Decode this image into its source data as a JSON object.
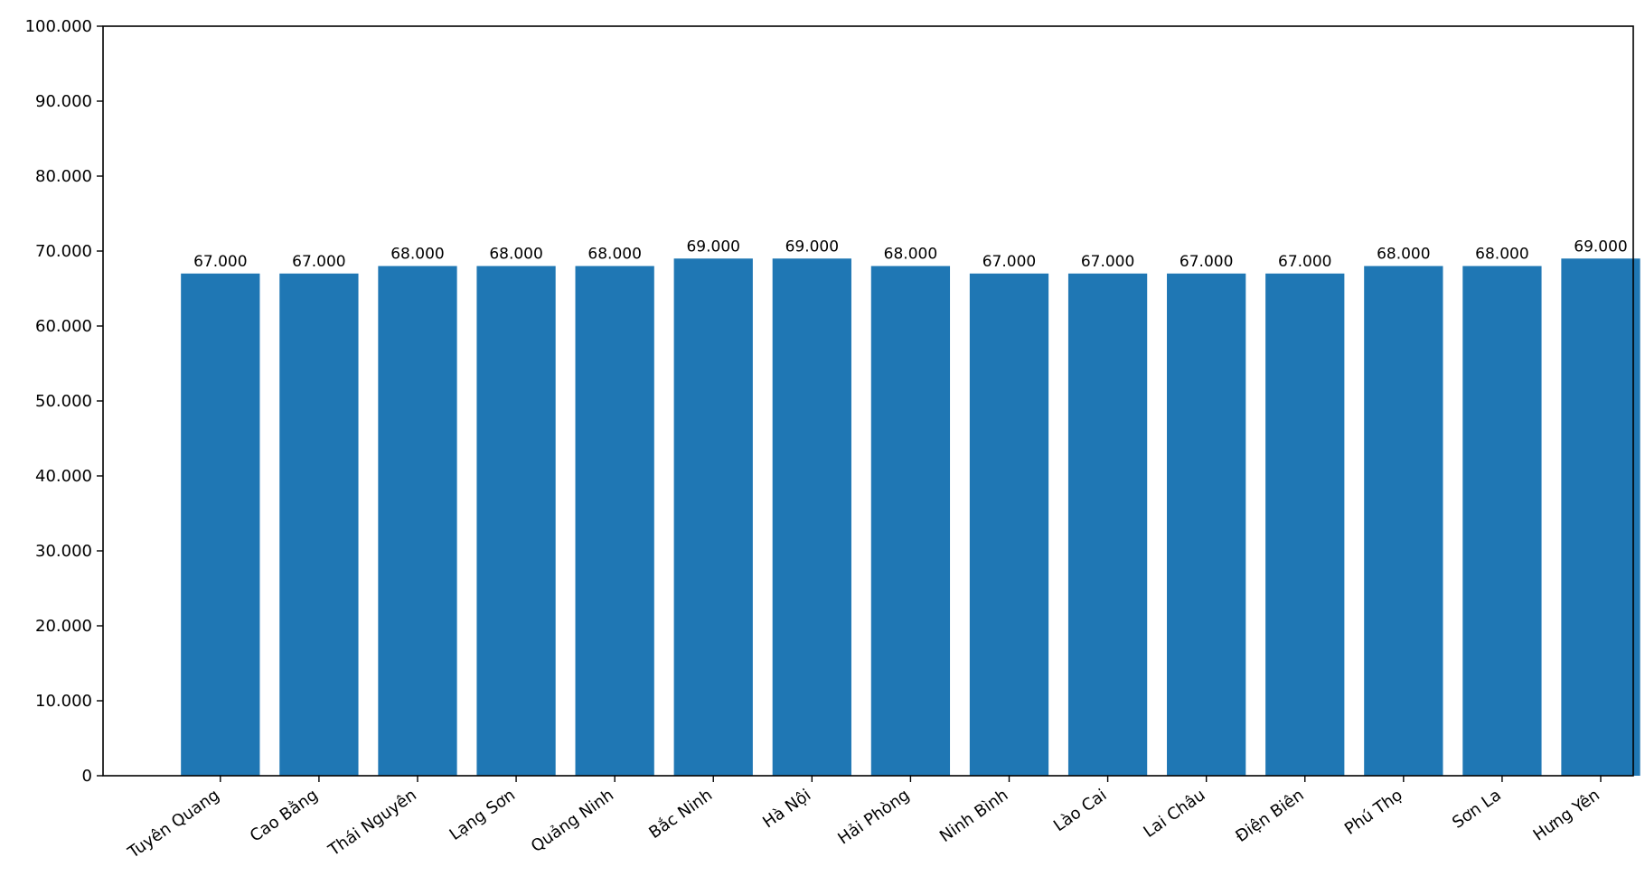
{
  "chart_data": {
    "type": "bar",
    "title": "",
    "xlabel": "",
    "ylabel": "",
    "categories": [
      "Tuyên Quang",
      "Cao Bằng",
      "Thái Nguyên",
      "Lạng Sơn",
      "Quảng Ninh",
      "Bắc Ninh",
      "Hà Nội",
      "Hải Phòng",
      "Ninh Bình",
      "Lào Cai",
      "Lai Châu",
      "Điện Biên",
      "Phú Thọ",
      "Sơn La",
      "Hưng Yên"
    ],
    "values": [
      67000,
      67000,
      68000,
      68000,
      68000,
      69000,
      69000,
      68000,
      67000,
      67000,
      67000,
      67000,
      68000,
      68000,
      69000
    ],
    "data_labels": [
      "67.000",
      "67.000",
      "68.000",
      "68.000",
      "68.000",
      "69.000",
      "69.000",
      "68.000",
      "67.000",
      "67.000",
      "67.000",
      "67.000",
      "68.000",
      "68.000",
      "69.000"
    ],
    "ylim": [
      0,
      100000
    ],
    "yticks": [
      0,
      10000,
      20000,
      30000,
      40000,
      50000,
      60000,
      70000,
      80000,
      90000,
      100000
    ],
    "ytick_labels": [
      "0",
      "10.000",
      "20.000",
      "30.000",
      "40.000",
      "50.000",
      "60.000",
      "70.000",
      "80.000",
      "90.000",
      "100.000"
    ],
    "grid": false,
    "legend": "none",
    "bar_color": "#1f77b4"
  }
}
